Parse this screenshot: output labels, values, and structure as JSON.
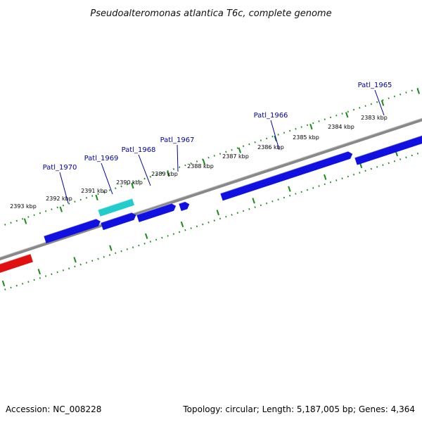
{
  "title": "Pseudoalteromonas atlantica T6c, complete genome",
  "footer": {
    "accession": "Accession: NC_008228",
    "summary": "Topology: circular; Length: 5,187,005 bp; Genes: 4,364"
  },
  "colors": {
    "forward_gene": "#1010e0",
    "reverse_gene": "#e01010",
    "rna_gene": "#22cccc",
    "backbone": "#888888",
    "ticks": "#1a8a1a",
    "gene_label": "#0000aa"
  },
  "scale_labels": [
    "2383 kbp",
    "2384 kbp",
    "2385 kbp",
    "2386 kbp",
    "2387 kbp",
    "2388 kbp",
    "2389 kbp",
    "2390 kbp",
    "2391 kbp",
    "2392 kbp",
    "2393 kbp"
  ],
  "gene_labels": [
    "Patl_1965",
    "Patl_1966",
    "Patl_1967",
    "Patl_1968",
    "Patl_1969",
    "Patl_1970"
  ]
}
